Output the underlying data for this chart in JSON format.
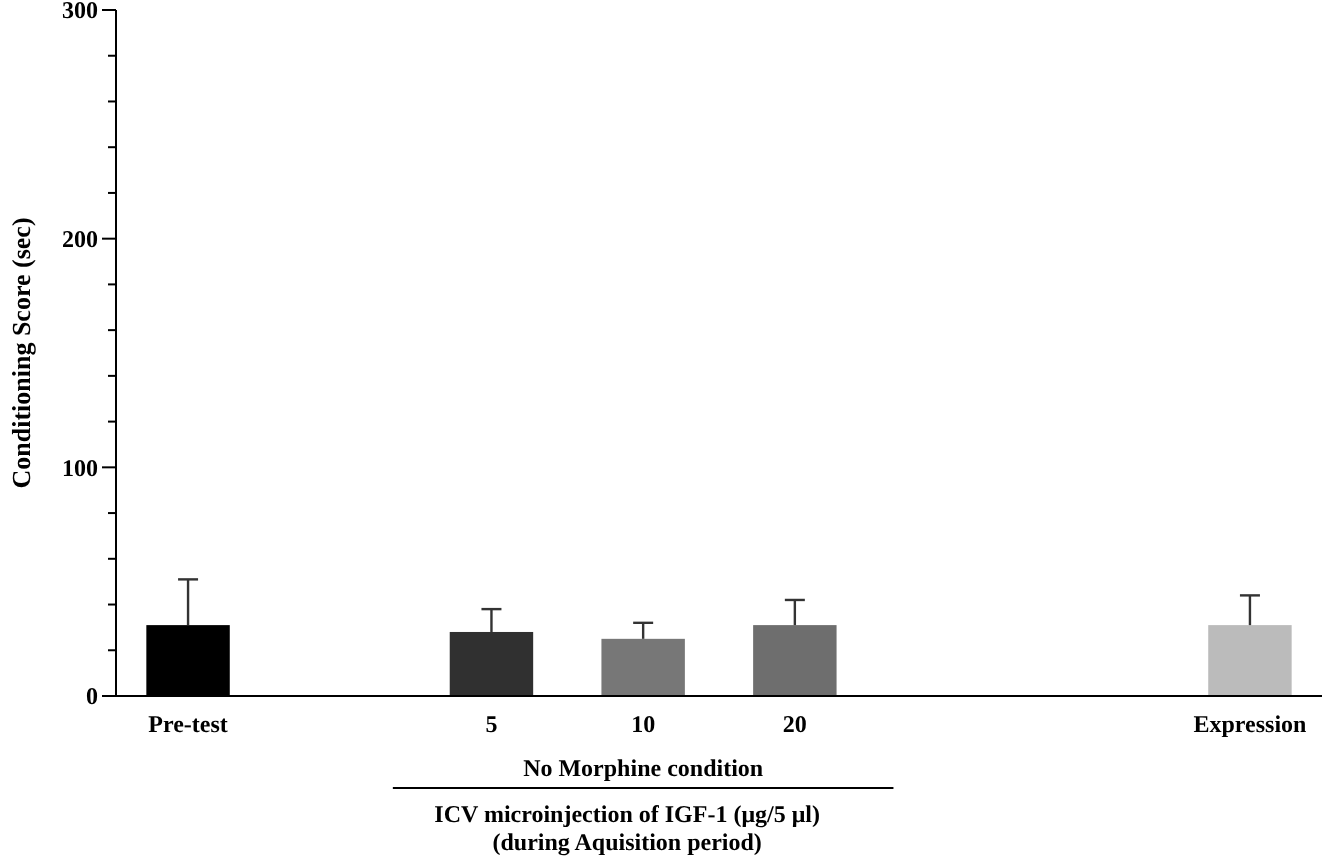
{
  "chart_data": {
    "type": "bar",
    "ylabel": "Conditioning Score (sec)",
    "xlabel": "ICV microinjection of IGF-1 (μg/5 μl)\n(during Aquisition period)",
    "categories": [
      "Pre-test",
      null,
      "5",
      "10",
      "20",
      null,
      null,
      "Expression"
    ],
    "values": [
      31,
      null,
      28,
      25,
      31,
      null,
      null,
      31
    ],
    "errors": [
      20,
      null,
      10,
      7,
      11,
      null,
      null,
      13
    ],
    "colors": [
      "#000000",
      null,
      "#303030",
      "#777777",
      "#6e6e6e",
      null,
      null,
      "#bbbbbb"
    ],
    "annotations": [
      "No Morphine condition"
    ],
    "ylim": [
      0,
      300
    ],
    "yticks": [
      0,
      {
        "value": 20,
        "label": null
      },
      {
        "value": 40,
        "label": null
      },
      {
        "value": 60,
        "label": null
      },
      {
        "value": 80,
        "label": null
      },
      100,
      {
        "value": 120,
        "label": null
      },
      {
        "value": 140,
        "label": null
      },
      {
        "value": 160,
        "label": null
      },
      {
        "value": 180,
        "label": null
      },
      200,
      {
        "value": 220,
        "label": null
      },
      {
        "value": 240,
        "label": null
      },
      {
        "value": 260,
        "label": null
      },
      {
        "value": 280,
        "label": null
      },
      300
    ]
  }
}
